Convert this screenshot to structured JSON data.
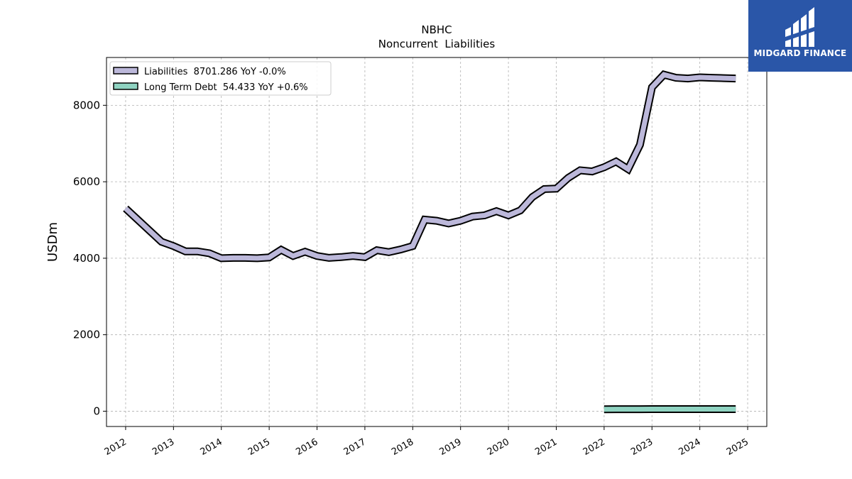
{
  "chart_data": {
    "type": "line",
    "title": "NBHC",
    "subtitle": "Noncurrent  Liabilities",
    "ylabel": "USDm",
    "xlim": [
      2011.6,
      2025.4
    ],
    "ylim": [
      -400,
      9250
    ],
    "x_ticks": [
      "2012",
      "2013",
      "2014",
      "2015",
      "2016",
      "2017",
      "2018",
      "2019",
      "2020",
      "2021",
      "2022",
      "2023",
      "2024",
      "2025"
    ],
    "y_ticks": [
      "0",
      "2000",
      "4000",
      "6000",
      "8000"
    ],
    "grid": true,
    "legend_position": "top-left",
    "series": [
      {
        "name": "Liabilities",
        "legend_label": "Liabilities  8701.286 YoY -0.0%",
        "color": "#bcb8da",
        "x": [
          2012.0,
          2012.75,
          2013.0,
          2013.25,
          2013.5,
          2013.75,
          2014.0,
          2014.25,
          2014.5,
          2014.75,
          2015.0,
          2015.25,
          2015.5,
          2015.75,
          2016.0,
          2016.25,
          2016.5,
          2016.75,
          2017.0,
          2017.25,
          2017.5,
          2017.75,
          2018.0,
          2018.25,
          2018.5,
          2018.75,
          2019.0,
          2019.25,
          2019.5,
          2019.75,
          2020.0,
          2020.25,
          2020.5,
          2020.75,
          2021.0,
          2021.25,
          2021.5,
          2021.75,
          2022.0,
          2022.25,
          2022.5,
          2022.75,
          2023.0,
          2023.25,
          2023.5,
          2023.75,
          2024.0,
          2024.25,
          2024.5,
          2024.75
        ],
        "y": [
          5300,
          4430,
          4320,
          4180,
          4180,
          4130,
          4000,
          4010,
          4010,
          4000,
          4020,
          4220,
          4060,
          4170,
          4060,
          4010,
          4030,
          4060,
          4030,
          4210,
          4160,
          4230,
          4320,
          5010,
          4980,
          4910,
          4980,
          5090,
          5120,
          5230,
          5120,
          5250,
          5600,
          5810,
          5820,
          6100,
          6300,
          6270,
          6380,
          6530,
          6330,
          6970,
          8470,
          8800,
          8720,
          8700,
          8730,
          8720,
          8710,
          8700
        ]
      },
      {
        "name": "Long Term Debt",
        "legend_label": "Long Term Debt  54.433 YoY +0.6%",
        "color": "#8fd3c1",
        "x": [
          2022.0,
          2022.25,
          2022.5,
          2022.75,
          2023.0,
          2023.25,
          2023.5,
          2023.75,
          2024.0,
          2024.25,
          2024.5,
          2024.75
        ],
        "y": [
          50,
          52,
          52,
          52,
          54,
          54,
          54,
          54,
          54,
          54,
          54,
          54
        ]
      }
    ]
  },
  "logo": {
    "text": "MIDGARD FINANCE",
    "color": "#2a56a8"
  }
}
